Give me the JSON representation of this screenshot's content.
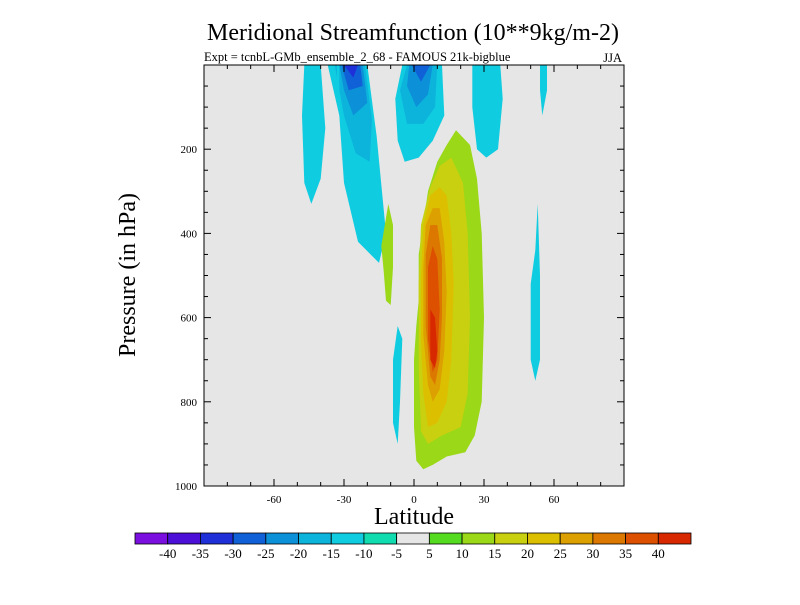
{
  "chart_data": {
    "type": "contour",
    "title": "Meridional Streamfunction (10**9kg/m-2)",
    "subtitle": "Expt = tcnbL-GMb_ensemble_2_68 - FAMOUS 21k-bigblue",
    "season": "JJA",
    "xlabel": "Latitude",
    "ylabel": "Pressure (in hPa)",
    "xlim": [
      -90,
      90
    ],
    "ylim": [
      1000,
      0
    ],
    "x_ticks": [
      -60,
      -30,
      0,
      30,
      60
    ],
    "x_tick_labels": [
      "-60",
      "-30",
      "0",
      "30",
      "60"
    ],
    "y_ticks": [
      200,
      400,
      600,
      800,
      1000
    ],
    "y_tick_labels": [
      "200",
      "400",
      "600",
      "800",
      "1000"
    ],
    "background_color": "#e6e6e6",
    "colorbar": {
      "labels": [
        "-40",
        "-35",
        "-30",
        "-25",
        "-20",
        "-15",
        "-10",
        "-5",
        "5",
        "10",
        "15",
        "20",
        "25",
        "30",
        "35",
        "40"
      ],
      "colors": [
        "#7b0fe0",
        "#4b0fd8",
        "#2030d8",
        "#1060d8",
        "#0c90d8",
        "#0cb4dc",
        "#10cce0",
        "#10dcb0",
        "#e6e6e6",
        "#55dc20",
        "#9ad818",
        "#c8d010",
        "#dcc000",
        "#dca000",
        "#dc7800",
        "#dc5000",
        "#d82800"
      ]
    },
    "regions": [
      {
        "name": "SH cell outer",
        "level": -10,
        "points": [
          [
            -37,
            0
          ],
          [
            -20,
            0
          ],
          [
            -16,
            170
          ],
          [
            -12,
            400
          ],
          [
            -15,
            470
          ],
          [
            -24,
            420
          ],
          [
            -30,
            280
          ],
          [
            -32,
            120
          ]
        ]
      },
      {
        "name": "SH cell -15",
        "level": -15,
        "points": [
          [
            -34,
            0
          ],
          [
            -21,
            0
          ],
          [
            -18,
            130
          ],
          [
            -19,
            230
          ],
          [
            -25,
            210
          ],
          [
            -30,
            120
          ]
        ]
      },
      {
        "name": "SH cell -20",
        "level": -20,
        "points": [
          [
            -32,
            0
          ],
          [
            -22,
            0
          ],
          [
            -20,
            90
          ],
          [
            -26,
            120
          ],
          [
            -30,
            60
          ]
        ]
      },
      {
        "name": "SH cell -25",
        "level": -25,
        "points": [
          [
            -31,
            0
          ],
          [
            -23,
            0
          ],
          [
            -22,
            50
          ],
          [
            -28,
            60
          ]
        ]
      },
      {
        "name": "SH cell -30",
        "level": -30,
        "points": [
          [
            -30,
            0
          ],
          [
            -24,
            0
          ],
          [
            -26,
            30
          ]
        ]
      },
      {
        "name": "Equatorial cell outer",
        "level": -10,
        "points": [
          [
            -5,
            0
          ],
          [
            12,
            0
          ],
          [
            13,
            120
          ],
          [
            8,
            180
          ],
          [
            2,
            220
          ],
          [
            -4,
            230
          ],
          [
            -7,
            180
          ],
          [
            -8,
            80
          ]
        ]
      },
      {
        "name": "Equatorial cell -15",
        "level": -15,
        "points": [
          [
            -3,
            0
          ],
          [
            10,
            0
          ],
          [
            9,
            100
          ],
          [
            4,
            140
          ],
          [
            -3,
            140
          ],
          [
            -6,
            60
          ]
        ]
      },
      {
        "name": "Equatorial cell -20",
        "level": -20,
        "points": [
          [
            -2,
            0
          ],
          [
            8,
            0
          ],
          [
            6,
            70
          ],
          [
            1,
            100
          ],
          [
            -3,
            50
          ]
        ]
      },
      {
        "name": "Equatorial cell -25",
        "level": -25,
        "points": [
          [
            -1,
            0
          ],
          [
            7,
            0
          ],
          [
            3,
            40
          ]
        ]
      },
      {
        "name": "SH deep arm",
        "level": -10,
        "points": [
          [
            -47,
            0
          ],
          [
            -40,
            0
          ],
          [
            -38,
            150
          ],
          [
            -40,
            270
          ],
          [
            -44,
            330
          ],
          [
            -47,
            280
          ],
          [
            -48,
            120
          ]
        ]
      },
      {
        "name": "SH thin strand",
        "level": -10,
        "points": [
          [
            -33,
            0
          ],
          [
            -32,
            0
          ],
          [
            -32,
            70
          ],
          [
            -33,
            70
          ]
        ]
      },
      {
        "name": "NH upper arm",
        "level": -10,
        "points": [
          [
            25,
            0
          ],
          [
            37,
            0
          ],
          [
            38,
            80
          ],
          [
            36,
            200
          ],
          [
            31,
            220
          ],
          [
            27,
            200
          ],
          [
            25,
            100
          ]
        ]
      },
      {
        "name": "Far NH strand",
        "level": -10,
        "points": [
          [
            54,
            0
          ],
          [
            57,
            0
          ],
          [
            57,
            60
          ],
          [
            55,
            120
          ],
          [
            54,
            60
          ]
        ]
      },
      {
        "name": "NH mid strand",
        "level": -10,
        "points": [
          [
            52,
            440
          ],
          [
            53,
            330
          ],
          [
            54,
            500
          ],
          [
            54,
            700
          ],
          [
            52,
            750
          ],
          [
            50,
            700
          ],
          [
            50,
            520
          ]
        ]
      },
      {
        "name": "Equatorial lower strand",
        "level": -10,
        "points": [
          [
            -7,
            620
          ],
          [
            -5,
            650
          ],
          [
            -6,
            800
          ],
          [
            -7,
            900
          ],
          [
            -9,
            850
          ],
          [
            -9,
            700
          ]
        ]
      },
      {
        "name": "Green left blob",
        "level": 10,
        "points": [
          [
            -14,
            430
          ],
          [
            -11,
            330
          ],
          [
            -9,
            380
          ],
          [
            -9,
            480
          ],
          [
            -10,
            570
          ],
          [
            -12,
            560
          ],
          [
            -13,
            490
          ]
        ]
      },
      {
        "name": "Green right patch",
        "level": 10,
        "points": [
          [
            18,
            200
          ],
          [
            22,
            210
          ],
          [
            24,
            340
          ],
          [
            20,
            360
          ],
          [
            17,
            320
          ]
        ]
      },
      {
        "name": "Positive cell 10",
        "level": 10,
        "points": [
          [
            2,
            560
          ],
          [
            2,
            450
          ],
          [
            6,
            300
          ],
          [
            10,
            230
          ],
          [
            14,
            190
          ],
          [
            18,
            155
          ],
          [
            24,
            190
          ],
          [
            27,
            270
          ],
          [
            29,
            400
          ],
          [
            30,
            600
          ],
          [
            29,
            800
          ],
          [
            26,
            880
          ],
          [
            22,
            920
          ],
          [
            14,
            930
          ],
          [
            8,
            950
          ],
          [
            4,
            960
          ],
          [
            1,
            940
          ],
          [
            0,
            860
          ],
          [
            0,
            700
          ],
          [
            1,
            620
          ]
        ]
      },
      {
        "name": "Positive cell 15",
        "level": 15,
        "points": [
          [
            2,
            520
          ],
          [
            3,
            380
          ],
          [
            7,
            290
          ],
          [
            11,
            240
          ],
          [
            16,
            220
          ],
          [
            21,
            280
          ],
          [
            23,
            400
          ],
          [
            24,
            600
          ],
          [
            23,
            780
          ],
          [
            20,
            860
          ],
          [
            12,
            880
          ],
          [
            6,
            900
          ],
          [
            3,
            870
          ],
          [
            2,
            720
          ]
        ]
      },
      {
        "name": "Positive cell 20",
        "level": 20,
        "points": [
          [
            3,
            500
          ],
          [
            4,
            380
          ],
          [
            7,
            310
          ],
          [
            11,
            290
          ],
          [
            14,
            310
          ],
          [
            16,
            400
          ],
          [
            17,
            520
          ],
          [
            16,
            700
          ],
          [
            14,
            800
          ],
          [
            10,
            850
          ],
          [
            6,
            860
          ],
          [
            4,
            780
          ],
          [
            3,
            650
          ]
        ]
      },
      {
        "name": "Positive cell 25",
        "level": 25,
        "points": [
          [
            4,
            480
          ],
          [
            5,
            380
          ],
          [
            8,
            340
          ],
          [
            11,
            340
          ],
          [
            13,
            420
          ],
          [
            14,
            540
          ],
          [
            13,
            680
          ],
          [
            11,
            770
          ],
          [
            8,
            800
          ],
          [
            6,
            760
          ],
          [
            4,
            640
          ]
        ]
      },
      {
        "name": "Positive cell 30",
        "level": 30,
        "points": [
          [
            5,
            450
          ],
          [
            7,
            380
          ],
          [
            10,
            380
          ],
          [
            12,
            460
          ],
          [
            12,
            600
          ],
          [
            11,
            700
          ],
          [
            9,
            760
          ],
          [
            7,
            740
          ],
          [
            5,
            620
          ]
        ]
      },
      {
        "name": "Positive cell 35",
        "level": 35,
        "points": [
          [
            6,
            480
          ],
          [
            8,
            430
          ],
          [
            10,
            460
          ],
          [
            11,
            580
          ],
          [
            10,
            700
          ],
          [
            8,
            730
          ],
          [
            6,
            650
          ]
        ]
      },
      {
        "name": "Positive cell 40",
        "level": 40,
        "points": [
          [
            7,
            580
          ],
          [
            9,
            600
          ],
          [
            10,
            680
          ],
          [
            9,
            720
          ],
          [
            7,
            700
          ]
        ]
      }
    ]
  }
}
